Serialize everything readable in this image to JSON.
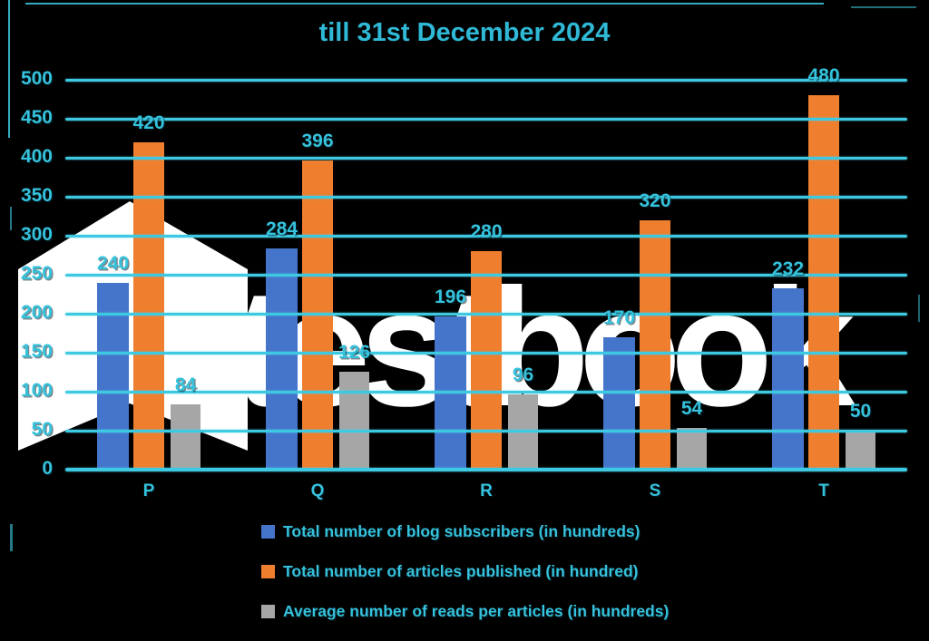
{
  "title": "till 31st December 2024",
  "chart_data": {
    "type": "bar",
    "categories": [
      "P",
      "Q",
      "R",
      "S",
      "T"
    ],
    "series": [
      {
        "name": "Total number of blog subscribers (in hundreds)",
        "values": [
          240,
          284,
          196,
          170,
          232
        ],
        "color": "#4574CB"
      },
      {
        "name": "Total number of articles published (in hundred)",
        "values": [
          420,
          396,
          280,
          320,
          480
        ],
        "color": "#EF7E2E"
      },
      {
        "name": "Average number of reads per articles (in hundreds)",
        "values": [
          84,
          126,
          96,
          54,
          50
        ],
        "color": "#A6A6A6"
      }
    ],
    "title": "till 31st December 2024",
    "xlabel": "",
    "ylabel": "",
    "ylim": [
      0,
      500
    ],
    "yticks": [
      0,
      50,
      100,
      150,
      200,
      250,
      300,
      350,
      400,
      450,
      500
    ],
    "grid": true,
    "legend_position": "bottom-left",
    "data_labels": true
  },
  "watermark": {
    "text": "testbook"
  },
  "theme": {
    "background": "#000000",
    "text_cyan": "#35C2DC",
    "gridline_cyan": "#3DC9E1",
    "watermark_white": "#FFFFFF"
  }
}
